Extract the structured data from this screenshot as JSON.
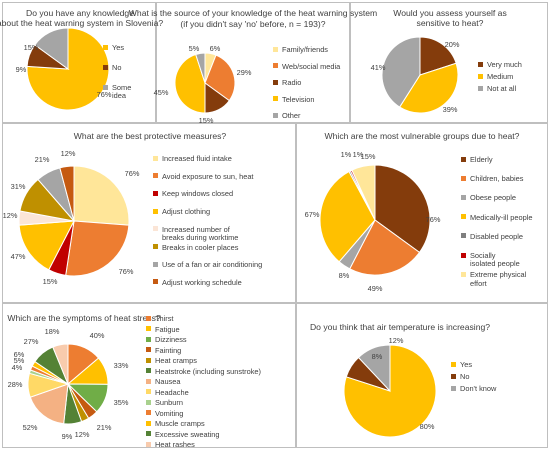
{
  "chart_data": [
    {
      "type": "pie",
      "title": "Do you have any knowledge about the heat warning system in Slovenia?",
      "categories": [
        "Yes",
        "No",
        "Some idea"
      ],
      "values": [
        76,
        9,
        15
      ],
      "labels": [
        "76%",
        "9%",
        "15%"
      ],
      "colors": [
        "#ffc000",
        "#843c0c",
        "#a5a5a5"
      ]
    },
    {
      "type": "pie",
      "title": "What is the source of your knowledge of the heat warning system",
      "subtitle": "(if you didn't say 'no' before, n = 193)?",
      "categories": [
        "Family/friends",
        "Web/social media",
        "Radio",
        "Television",
        "Other"
      ],
      "values": [
        6,
        29,
        15,
        45,
        5
      ],
      "labels": [
        "6%",
        "29%",
        "15%",
        "45%",
        "5%"
      ],
      "colors": [
        "#ffe699",
        "#ed7d31",
        "#843c0c",
        "#ffc000",
        "#a5a5a5"
      ]
    },
    {
      "type": "pie",
      "title": "Would you assess yourself as sensitive to heat?",
      "categories": [
        "Very much",
        "Medium",
        "Not at all"
      ],
      "values": [
        20,
        39,
        41
      ],
      "labels": [
        "20%",
        "39%",
        "41%"
      ],
      "colors": [
        "#843c0c",
        "#ffc000",
        "#a5a5a5"
      ]
    },
    {
      "type": "pie",
      "title": "What are the best protective measures?",
      "categories": [
        "Increased fluid intake",
        "Avoid exposure to sun, heat",
        "Keep windows closed",
        "Adjust clothing",
        "Increased number of breaks during worktime",
        "Breaks in cooler places",
        "Use of a fan or air conditioning",
        "Adjust working schedule"
      ],
      "values": [
        76,
        76,
        15,
        47,
        12,
        31,
        21,
        12
      ],
      "labels": [
        "76%",
        "76%",
        "15%",
        "47%",
        "12%",
        "31%",
        "21%",
        "12%"
      ],
      "colors": [
        "#ffe699",
        "#ed7d31",
        "#c00000",
        "#ffc000",
        "#fbe5d6",
        "#bf9000",
        "#a5a5a5",
        "#c55a11"
      ]
    },
    {
      "type": "pie",
      "title": "Which are the most vulnerable groups due to heat?",
      "categories": [
        "Elderly",
        "Children, babies",
        "Obese people",
        "Medically-ill people",
        "Disabled people",
        "Socially isolated people",
        "Extreme physical effort"
      ],
      "values": [
        76,
        49,
        8,
        67,
        1,
        1,
        15
      ],
      "labels": [
        "76%",
        "49%",
        "8%",
        "67%",
        "1%",
        "1%",
        "15%"
      ],
      "colors": [
        "#843c0c",
        "#ed7d31",
        "#a5a5a5",
        "#ffc000",
        "#7f7f7f",
        "#c00000",
        "#ffe699"
      ]
    },
    {
      "type": "pie",
      "title": "Which are the symptoms of heat stress?",
      "categories": [
        "Thirst",
        "Fatigue",
        "Dizziness",
        "Fainting",
        "Heat cramps",
        "Heatstroke (including sunstroke)",
        "Nausea",
        "Headache",
        "Sunburn",
        "Vomiting",
        "Muscle cramps",
        "Excessive sweating",
        "Heat rashes"
      ],
      "values": [
        40,
        33,
        35,
        12,
        9,
        21,
        52,
        28,
        4,
        5,
        6,
        27,
        18
      ],
      "labels": [
        "40%",
        "33%",
        "35%",
        "12%",
        "9%",
        "21%",
        "52%",
        "28%",
        "4%",
        "5%",
        "6%",
        "27%",
        "18%"
      ],
      "colors": [
        "#ed7d31",
        "#ffc000",
        "#70ad47",
        "#c55a11",
        "#bf9000",
        "#548235",
        "#f4b183",
        "#ffd966",
        "#a9d18e",
        "#ed7d31",
        "#ffc000",
        "#548235",
        "#f8cbad"
      ]
    },
    {
      "type": "pie",
      "title": "Do you think that air temperature is increasing?",
      "categories": [
        "Yes",
        "No",
        "Don't know"
      ],
      "values": [
        80,
        8,
        12
      ],
      "labels": [
        "80%",
        "8%",
        "12%"
      ],
      "colors": [
        "#ffc000",
        "#843c0c",
        "#a5a5a5"
      ]
    }
  ]
}
